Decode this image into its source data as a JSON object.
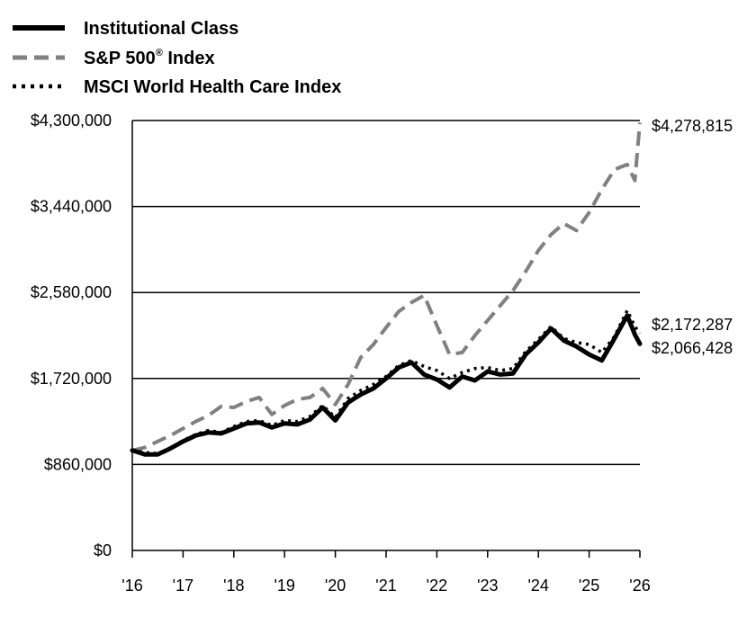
{
  "chart_data": {
    "type": "line",
    "title": "",
    "xlabel": "",
    "ylabel": "",
    "ylim": [
      0,
      4300000
    ],
    "xlim": [
      2016,
      2026
    ],
    "grid": "horizontal",
    "legend_position": "top-left",
    "y_ticks": [
      {
        "value": 0,
        "label": "$0"
      },
      {
        "value": 860000,
        "label": "$860,000"
      },
      {
        "value": 1720000,
        "label": "$1,720,000"
      },
      {
        "value": 2580000,
        "label": "$2,580,000"
      },
      {
        "value": 3440000,
        "label": "$3,440,000"
      },
      {
        "value": 4300000,
        "label": "$4,300,000"
      }
    ],
    "x_ticks": [
      {
        "value": 2016,
        "label": "'16"
      },
      {
        "value": 2017,
        "label": "'17"
      },
      {
        "value": 2018,
        "label": "'18"
      },
      {
        "value": 2019,
        "label": "'19"
      },
      {
        "value": 2020,
        "label": "'20"
      },
      {
        "value": 2021,
        "label": "'21"
      },
      {
        "value": 2022,
        "label": "'22"
      },
      {
        "value": 2023,
        "label": "'23"
      },
      {
        "value": 2024,
        "label": "'24"
      },
      {
        "value": 2025,
        "label": "'25"
      },
      {
        "value": 2026,
        "label": "'26"
      }
    ],
    "series": [
      {
        "name": "S&P 500® Index",
        "legend_base": "S&P 500",
        "legend_mark": "®",
        "legend_suffix": " Index",
        "style": "dashed",
        "color": "#808080",
        "end_label": "$4,278,815",
        "x": [
          2016,
          2016.25,
          2016.5,
          2016.75,
          2017,
          2017.25,
          2017.5,
          2017.75,
          2018,
          2018.25,
          2018.5,
          2018.75,
          2019,
          2019.25,
          2019.5,
          2019.75,
          2020,
          2020.25,
          2020.5,
          2020.75,
          2021,
          2021.25,
          2021.5,
          2021.75,
          2022,
          2022.25,
          2022.5,
          2022.75,
          2023,
          2023.25,
          2023.5,
          2023.75,
          2024,
          2024.25,
          2024.5,
          2024.75,
          2025,
          2025.25,
          2025.5,
          2025.75,
          2025.9,
          2026
        ],
        "y": [
          1000000,
          1030000,
          1090000,
          1150000,
          1220000,
          1290000,
          1350000,
          1440000,
          1430000,
          1490000,
          1530000,
          1360000,
          1450000,
          1510000,
          1530000,
          1620000,
          1460000,
          1660000,
          1930000,
          2060000,
          2230000,
          2390000,
          2480000,
          2550000,
          2250000,
          1960000,
          1980000,
          2150000,
          2300000,
          2450000,
          2600000,
          2790000,
          3000000,
          3160000,
          3270000,
          3200000,
          3380000,
          3610000,
          3810000,
          3860000,
          3700000,
          4278815
        ]
      },
      {
        "name": "MSCI World Health Care Index",
        "style": "dotted",
        "color": "#000000",
        "end_label": "$2,172,287",
        "x": [
          2016,
          2016.25,
          2016.5,
          2016.75,
          2017,
          2017.25,
          2017.5,
          2017.75,
          2018,
          2018.25,
          2018.5,
          2018.75,
          2019,
          2019.25,
          2019.5,
          2019.75,
          2020,
          2020.25,
          2020.5,
          2020.75,
          2021,
          2021.25,
          2021.5,
          2021.75,
          2022,
          2022.25,
          2022.5,
          2022.75,
          2023,
          2023.25,
          2023.5,
          2023.75,
          2024,
          2024.25,
          2024.5,
          2024.75,
          2025,
          2025.25,
          2025.5,
          2025.75,
          2025.9,
          2026
        ],
        "y": [
          1000000,
          980000,
          970000,
          1020000,
          1100000,
          1160000,
          1200000,
          1180000,
          1240000,
          1290000,
          1300000,
          1250000,
          1300000,
          1290000,
          1340000,
          1450000,
          1330000,
          1520000,
          1600000,
          1660000,
          1740000,
          1850000,
          1900000,
          1840000,
          1800000,
          1720000,
          1780000,
          1820000,
          1830000,
          1800000,
          1820000,
          1990000,
          2110000,
          2240000,
          2120000,
          2080000,
          2060000,
          1980000,
          2140000,
          2400000,
          2240000,
          2172287
        ]
      },
      {
        "name": "Institutional Class",
        "style": "solid",
        "color": "#000000",
        "end_label": "$2,066,428",
        "x": [
          2016,
          2016.25,
          2016.5,
          2016.75,
          2017,
          2017.25,
          2017.5,
          2017.75,
          2018,
          2018.25,
          2018.5,
          2018.75,
          2019,
          2019.25,
          2019.5,
          2019.75,
          2020,
          2020.25,
          2020.5,
          2020.75,
          2021,
          2021.25,
          2021.5,
          2021.75,
          2022,
          2022.25,
          2022.5,
          2022.75,
          2023,
          2023.25,
          2023.5,
          2023.75,
          2024,
          2024.25,
          2024.5,
          2024.75,
          2025,
          2025.25,
          2025.5,
          2025.75,
          2025.9,
          2026
        ],
        "y": [
          1000000,
          960000,
          960000,
          1020000,
          1090000,
          1150000,
          1180000,
          1170000,
          1220000,
          1270000,
          1280000,
          1230000,
          1270000,
          1260000,
          1310000,
          1430000,
          1300000,
          1480000,
          1560000,
          1620000,
          1720000,
          1830000,
          1880000,
          1760000,
          1710000,
          1630000,
          1740000,
          1700000,
          1790000,
          1760000,
          1770000,
          1960000,
          2080000,
          2220000,
          2100000,
          2040000,
          1960000,
          1900000,
          2120000,
          2350000,
          2160000,
          2066428
        ]
      }
    ],
    "legend_order": [
      2,
      0,
      1
    ]
  }
}
